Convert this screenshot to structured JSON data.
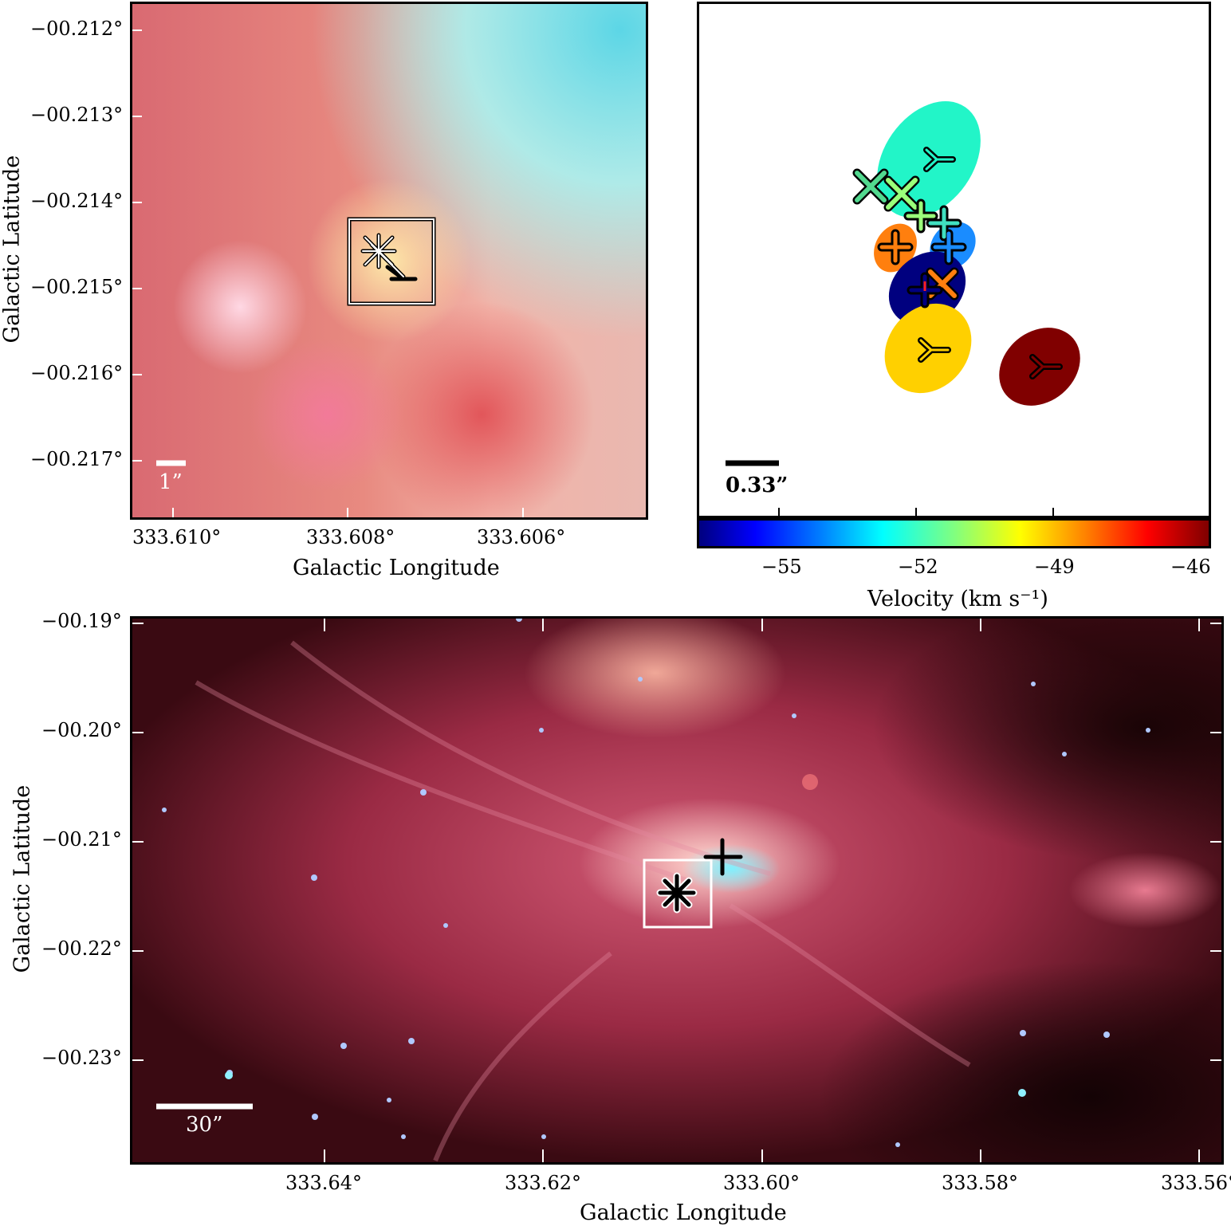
{
  "top_left": {
    "y_ticks": [
      "−00.212°",
      "−00.213°",
      "−00.214°",
      "−00.215°",
      "−00.216°",
      "−00.217°"
    ],
    "x_ticks": [
      "333.610°",
      "333.608°",
      "333.606°"
    ],
    "xlabel": "Galactic Longitude",
    "ylabel": "Galactic Latitude",
    "scale_bar": "1”"
  },
  "top_right": {
    "scale_bar": "0.33”",
    "colorbar_ticks": [
      "−55",
      "−52",
      "−49",
      "−46"
    ],
    "colorbar_label": "Velocity (km s⁻¹)",
    "colors": {
      "cyan": "#22f5c8",
      "orange": "#ff7f0e",
      "blue": "#1a8cff",
      "navy": "#00007f",
      "gold": "#ffd000",
      "darkred": "#800000",
      "lightgreen": "#9aff7a"
    }
  },
  "bottom": {
    "y_ticks": [
      "−00.19°",
      "−00.20°",
      "−00.21°",
      "−00.22°",
      "−00.23°"
    ],
    "x_ticks": [
      "333.64°",
      "333.62°",
      "333.60°",
      "333.58°",
      "333.56°"
    ],
    "xlabel": "Galactic Longitude",
    "ylabel": "Galactic Latitude",
    "scale_bar": "30”"
  }
}
